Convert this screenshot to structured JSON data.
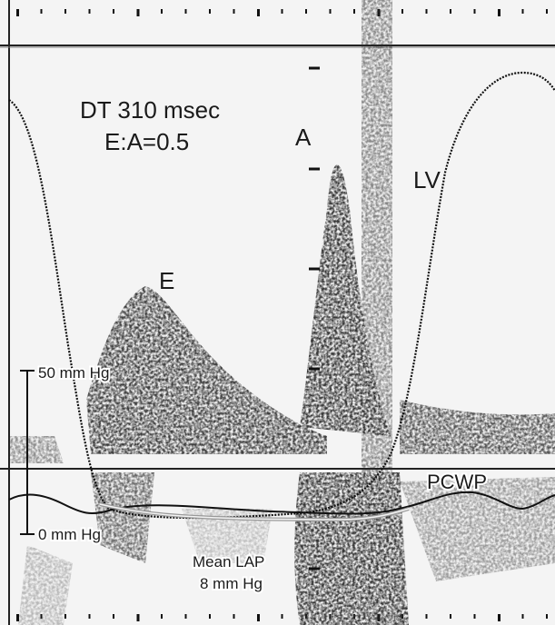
{
  "annotations": {
    "dt": "DT 310 msec",
    "ratio": "E:A=0.5",
    "e_wave": "E",
    "a_wave": "A",
    "lv": "LV",
    "pcwp": "PCWP",
    "scale_top": "50 mm Hg",
    "scale_bottom": "0 mm Hg",
    "mean_lap_line1": "Mean LAP",
    "mean_lap_line2": "8 mm Hg"
  },
  "colors": {
    "background": "#f4f4f4",
    "ink": "#1a1a1a",
    "doppler": "#2a2a2a"
  }
}
